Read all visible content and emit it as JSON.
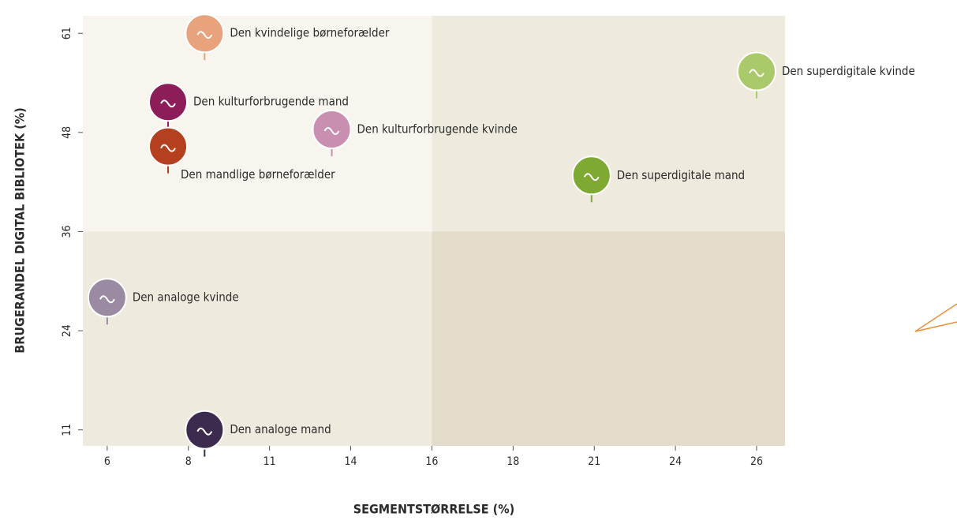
{
  "chart_data": {
    "type": "scatter",
    "x_label": "SEGMENTSTØRRELSE (%)",
    "y_label": "BRUGERANDEL DIGITAL BIBLIOTEK (%)",
    "xlim": [
      5.4,
      26.7
    ],
    "ylim": [
      8.9,
      63.3
    ],
    "xticks": [
      6,
      8,
      11,
      14,
      16,
      18,
      21,
      24,
      26
    ],
    "yticks": [
      11,
      24,
      36,
      48,
      61
    ],
    "quadrant_split": [
      16,
      36
    ],
    "quadrant_colors": [
      "#f7f5ee",
      "#efeade",
      "#efeade",
      "#e3dcca"
    ],
    "series": [
      {
        "name": "Den kvindelige børneforælder",
        "color": "#e8a27c",
        "x": [
          8.6
        ],
        "values": [
          61
        ]
      },
      {
        "name": "Den kulturforbrugende mand",
        "color": "#8c1d58",
        "x": [
          7.5
        ],
        "values": [
          52
        ]
      },
      {
        "name": "Den mandlige børneforælder",
        "color": "#b5401f",
        "x": [
          7.5
        ],
        "values": [
          46.3
        ]
      },
      {
        "name": "Den kulturforbrugende kvinde",
        "color": "#c98fb1",
        "x": [
          13.3
        ],
        "values": [
          48.4
        ]
      },
      {
        "name": "Den superdigitale kvinde",
        "color": "#a9c96a",
        "x": [
          26
        ],
        "values": [
          56
        ]
      },
      {
        "name": "Den superdigitale mand",
        "color": "#7ea932",
        "x": [
          20.9
        ],
        "values": [
          42.8
        ]
      },
      {
        "name": "Den analoge kvinde",
        "color": "#9a8ba3",
        "x": [
          6
        ],
        "values": [
          28
        ]
      },
      {
        "name": "Den analoge mand",
        "color": "#3d2b4f",
        "x": [
          8.6
        ],
        "values": [
          11
        ]
      }
    ]
  }
}
